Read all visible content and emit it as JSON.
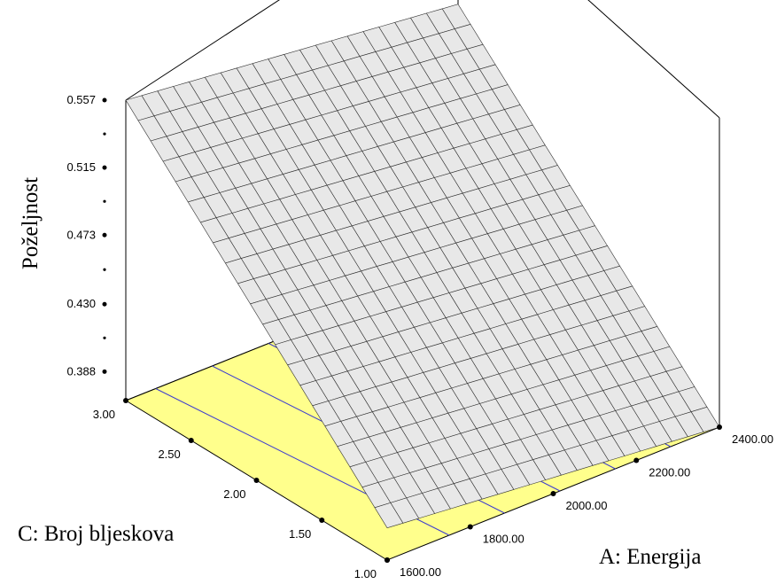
{
  "chart_data": {
    "type": "surface3d",
    "zlabel": "Poželjnost",
    "xlabel": "A: Energija",
    "ylabel": "C: Broj bljeskova",
    "x_ticks": [
      "1600.00",
      "1800.00",
      "2000.00",
      "2200.00",
      "2400.00"
    ],
    "y_ticks": [
      "1.00",
      "1.50",
      "2.00",
      "2.50",
      "3.00"
    ],
    "z_ticks": [
      "0.388",
      "0.430",
      "0.473",
      "0.515",
      "0.557"
    ],
    "xlim": [
      1600,
      2400
    ],
    "ylim": [
      1,
      3
    ],
    "zlim": [
      0.37,
      0.557
    ],
    "surface_corners": {
      "x1600_y3": 0.557,
      "x2400_y3": 0.534,
      "x2400_y1": 0.37,
      "x1600_y1": 0.39
    },
    "grid_divisions": 21,
    "contour_line_count": 5,
    "colors": {
      "surface_fill": "#e8e8e8",
      "surface_grid": "#303030",
      "floor_fill": "#ffff8c",
      "contour": "#3a3ad0",
      "frame": "#000000"
    }
  }
}
